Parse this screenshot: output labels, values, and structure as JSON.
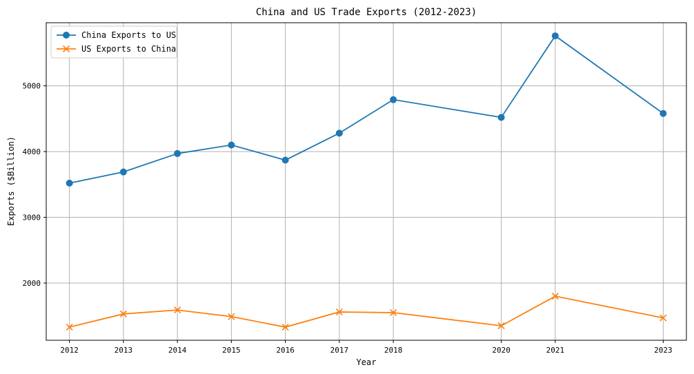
{
  "chart_data": {
    "type": "line",
    "title": "China and US Trade Exports (2012-2023)",
    "xlabel": "Year",
    "ylabel": "Exports ($Billion)",
    "x": [
      2012,
      2013,
      2014,
      2015,
      2016,
      2017,
      2018,
      2020,
      2021,
      2023
    ],
    "x_tick_labels": [
      "2012",
      "2013",
      "2014",
      "2015",
      "2016",
      "2017",
      "2018",
      "2020",
      "2021",
      "2023"
    ],
    "xlim": [
      2011.57,
      2023.43
    ],
    "ylim": [
      1130,
      5960
    ],
    "y_ticks": [
      2000,
      3000,
      4000,
      5000
    ],
    "y_tick_labels": [
      "2000",
      "3000",
      "4000",
      "5000"
    ],
    "grid": true,
    "legend_position": "top-left",
    "series": [
      {
        "name": "China Exports to US",
        "color": "#1f77b4",
        "marker": "circle",
        "values": [
          3520,
          3690,
          3970,
          4100,
          3870,
          4280,
          4790,
          4520,
          5760,
          4580
        ]
      },
      {
        "name": "US Exports to China",
        "color": "#ff7f0e",
        "marker": "x",
        "values": [
          1330,
          1530,
          1590,
          1490,
          1330,
          1560,
          1550,
          1350,
          1800,
          1470
        ]
      }
    ]
  }
}
